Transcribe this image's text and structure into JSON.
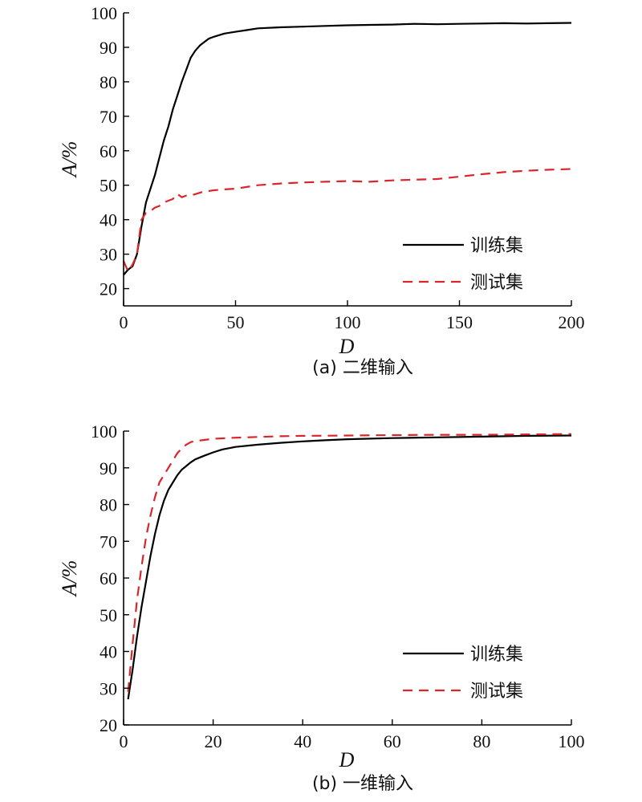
{
  "colors": {
    "train": "#000000",
    "test": "#d9262b",
    "axis": "#000000"
  },
  "chart_data": [
    {
      "type": "line",
      "caption": "(a) 二维输入",
      "xlabel": "D",
      "ylabel": "A/%",
      "xlim": [
        0,
        200
      ],
      "ylim": [
        15,
        100
      ],
      "xticks": [
        0,
        50,
        100,
        150,
        200
      ],
      "yticks": [
        20,
        30,
        40,
        50,
        60,
        70,
        80,
        90,
        100
      ],
      "legend_position": "bottom-right",
      "series": [
        {
          "name": "训练集",
          "style": "solid",
          "x": [
            0,
            2,
            4,
            6,
            8,
            10,
            12,
            14,
            16,
            18,
            20,
            22,
            24,
            26,
            28,
            30,
            32,
            34,
            36,
            38,
            40,
            45,
            50,
            55,
            60,
            70,
            80,
            90,
            100,
            110,
            120,
            130,
            140,
            150,
            160,
            170,
            180,
            190,
            200
          ],
          "y": [
            24,
            25.5,
            26.5,
            30,
            38,
            45,
            49,
            53,
            58,
            63,
            67,
            72,
            76,
            80,
            83.5,
            87,
            89,
            90.5,
            91.5,
            92.5,
            93,
            94,
            94.5,
            95,
            95.5,
            95.8,
            96,
            96.2,
            96.4,
            96.5,
            96.6,
            96.8,
            96.7,
            96.8,
            96.9,
            97,
            96.9,
            97,
            97.1
          ]
        },
        {
          "name": "测试集",
          "style": "dashed",
          "x": [
            0,
            2,
            4,
            6,
            8,
            10,
            12,
            14,
            16,
            18,
            20,
            22,
            24,
            26,
            28,
            30,
            35,
            40,
            45,
            50,
            55,
            60,
            70,
            80,
            90,
            100,
            110,
            120,
            130,
            140,
            150,
            160,
            170,
            180,
            190,
            200
          ],
          "y": [
            28,
            25,
            27,
            30,
            40,
            42,
            42.5,
            43.5,
            44,
            45,
            45.5,
            46,
            47.5,
            46.5,
            47,
            47,
            48,
            48.5,
            48.8,
            49,
            49.5,
            50,
            50.5,
            50.8,
            51,
            51.2,
            51,
            51.4,
            51.6,
            51.8,
            52.5,
            53.2,
            53.8,
            54.2,
            54.5,
            54.7
          ]
        }
      ]
    },
    {
      "type": "line",
      "caption": "(b) 一维输入",
      "xlabel": "D",
      "ylabel": "A/%",
      "xlim": [
        0,
        100
      ],
      "ylim": [
        20,
        100
      ],
      "xticks": [
        0,
        20,
        40,
        60,
        80,
        100
      ],
      "yticks": [
        20,
        30,
        40,
        50,
        60,
        70,
        80,
        90,
        100
      ],
      "legend_position": "bottom-right",
      "series": [
        {
          "name": "训练集",
          "style": "solid",
          "x": [
            1,
            2,
            3,
            4,
            5,
            6,
            7,
            8,
            9,
            10,
            11,
            12,
            13,
            14,
            15,
            16,
            18,
            20,
            22,
            25,
            30,
            35,
            40,
            45,
            50,
            60,
            70,
            80,
            90,
            100
          ],
          "y": [
            27,
            35,
            44,
            52,
            59,
            66,
            72,
            77,
            81,
            84,
            86,
            88,
            89.5,
            90.5,
            91.5,
            92.3,
            93.3,
            94.2,
            95,
            95.7,
            96.3,
            96.8,
            97.2,
            97.5,
            97.8,
            98.1,
            98.3,
            98.5,
            98.7,
            98.8
          ]
        },
        {
          "name": "测试集",
          "style": "dashed",
          "x": [
            1,
            2,
            3,
            4,
            5,
            6,
            7,
            8,
            9,
            10,
            11,
            12,
            13,
            14,
            15,
            16,
            18,
            20,
            25,
            30,
            35,
            40,
            50,
            60,
            70,
            80,
            90,
            100
          ],
          "y": [
            29,
            42,
            54,
            63,
            71,
            77,
            82,
            86,
            88,
            90,
            92,
            94,
            95.3,
            96.3,
            97,
            97.3,
            97.6,
            97.9,
            98.2,
            98.4,
            98.6,
            98.7,
            98.8,
            98.9,
            99,
            99,
            99.1,
            99.2
          ]
        }
      ]
    }
  ]
}
